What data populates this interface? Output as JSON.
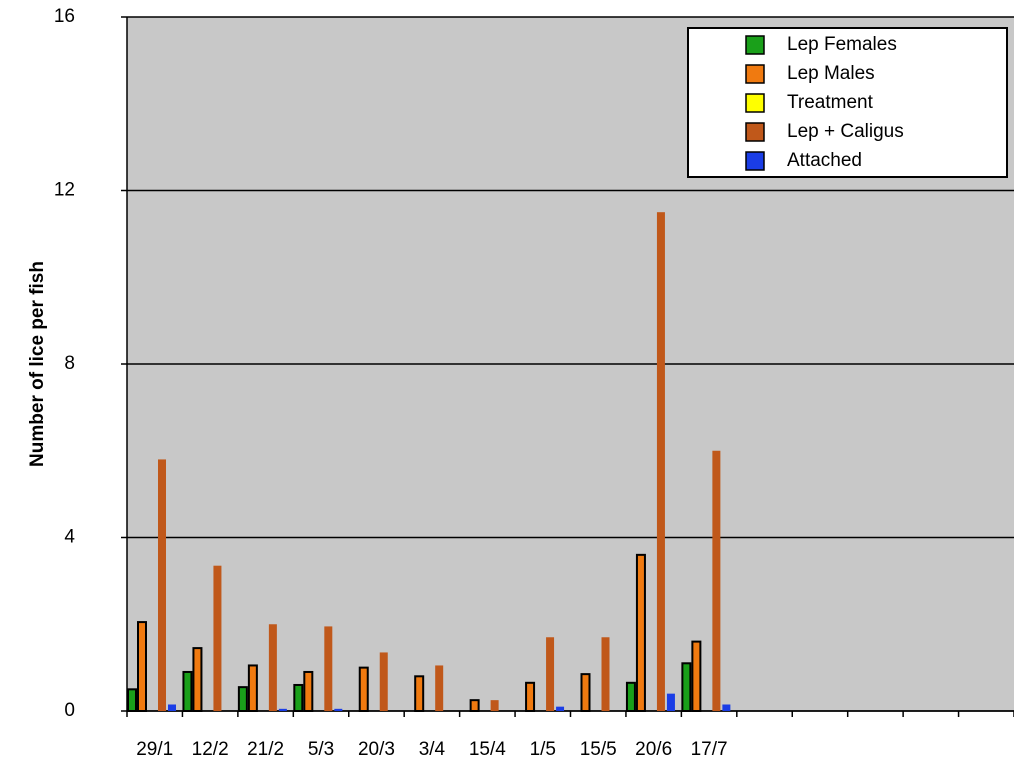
{
  "chart_data": {
    "type": "bar",
    "y_label": "Number of lice per fish",
    "categories": [
      "29/1",
      "12/2",
      "21/2",
      "5/3",
      "20/3",
      "3/4",
      "15/4",
      "1/5",
      "15/5",
      "20/6",
      "17/7",
      null,
      null,
      null,
      null,
      null
    ],
    "series": [
      {
        "name": "Lep Females",
        "color": "#1aa01a",
        "values": [
          0.5,
          0.9,
          0.55,
          0.6,
          0,
          0,
          0,
          0,
          0,
          0.65,
          1.1,
          null,
          null,
          null,
          null,
          null
        ]
      },
      {
        "name": "Lep Males",
        "color": "#f07a10",
        "values": [
          2.05,
          1.45,
          1.05,
          0.9,
          1.0,
          0.8,
          0.25,
          0.65,
          0.85,
          3.6,
          1.6,
          null,
          null,
          null,
          null,
          null
        ]
      },
      {
        "name": "Treatment",
        "color": "#ffff00",
        "values": [
          0,
          0,
          0,
          0,
          0,
          0,
          0,
          0,
          0,
          0,
          0,
          null,
          null,
          null,
          null,
          null
        ]
      },
      {
        "name": "Lep + Caligus",
        "color": "#c0581a",
        "values": [
          5.8,
          3.35,
          2.0,
          1.95,
          1.35,
          1.05,
          0.25,
          1.7,
          1.7,
          11.5,
          6.0,
          null,
          null,
          null,
          null,
          null
        ]
      },
      {
        "name": "Attached",
        "color": "#1a3de6",
        "values": [
          0.15,
          0,
          0.05,
          0.05,
          0,
          0,
          0,
          0.1,
          0,
          0.4,
          0.15,
          null,
          null,
          null,
          null,
          null
        ]
      }
    ],
    "ylim": [
      0,
      16
    ],
    "yticks": [
      0,
      4,
      8,
      12,
      16
    ],
    "grid": true,
    "legend": "top-right"
  }
}
